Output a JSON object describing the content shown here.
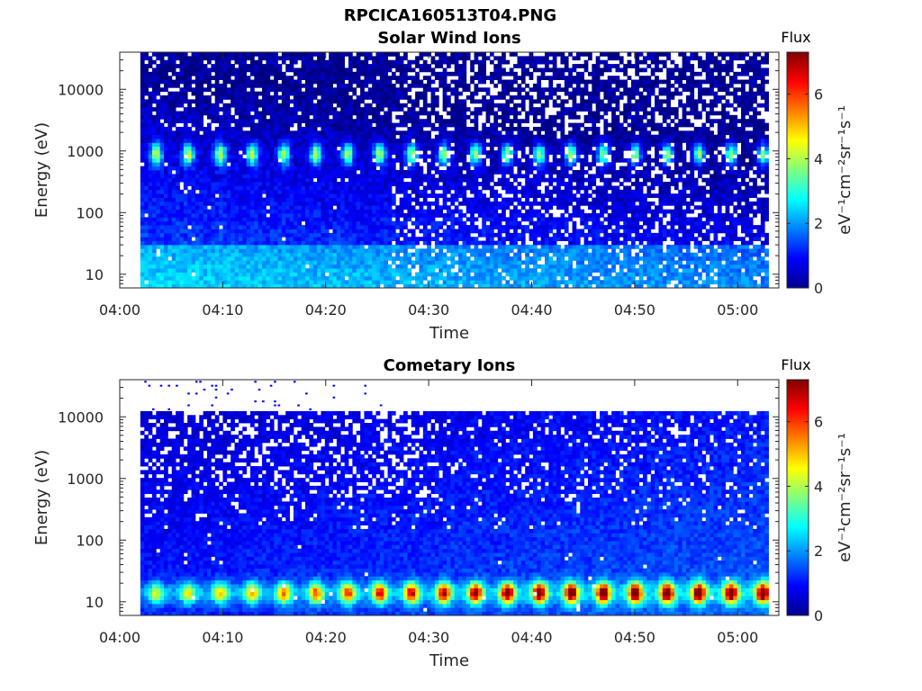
{
  "file_title": "RPCICA160513T04.PNG",
  "colors": {
    "axis": "#262626",
    "background": "#ffffff",
    "colormap": "jet"
  },
  "chart_data": [
    {
      "type": "heatmap",
      "title": "Solar Wind Ions",
      "xlabel": "Time",
      "ylabel": "Energy (eV)",
      "xlim": [
        "04:00",
        "05:04"
      ],
      "x_ticks": [
        "04:00",
        "04:10",
        "04:20",
        "04:30",
        "04:40",
        "04:50",
        "05:00"
      ],
      "y_scale": "log",
      "ylim": [
        6,
        40000
      ],
      "y_ticks": [
        "10",
        "100",
        "1000",
        "10000"
      ],
      "data_start": "04:02",
      "data_end": "05:03",
      "colorbar": {
        "title": "Flux",
        "label": "eV⁻¹cm⁻²sr⁻¹s⁻¹",
        "range": [
          0,
          7.3
        ],
        "ticks": [
          "0",
          "2",
          "4",
          "6"
        ]
      },
      "features": [
        {
          "name": "solar wind peak",
          "energy_eV": 900,
          "flux": 3.5,
          "period_min": 3.1
        },
        {
          "name": "low-energy band",
          "energy_eV": 15,
          "flux": 2.3
        }
      ]
    },
    {
      "type": "heatmap",
      "title": "Cometary Ions",
      "xlabel": "Time",
      "ylabel": "Energy (eV)",
      "xlim": [
        "04:00",
        "05:04"
      ],
      "x_ticks": [
        "04:00",
        "04:10",
        "04:20",
        "04:30",
        "04:40",
        "04:50",
        "05:00"
      ],
      "y_scale": "log",
      "ylim": [
        6,
        40000
      ],
      "y_ticks": [
        "10",
        "100",
        "1000",
        "10000"
      ],
      "data_start": "04:02",
      "data_end": "05:03",
      "colorbar": {
        "title": "Flux",
        "label": "eV⁻¹cm⁻²sr⁻¹s⁻¹",
        "range": [
          0,
          7.3
        ],
        "ticks": [
          "0",
          "2",
          "4",
          "6"
        ]
      },
      "features": [
        {
          "name": "cometary ion band",
          "energy_eV": 15,
          "flux": 5.8,
          "period_min": 3.1
        }
      ]
    }
  ]
}
